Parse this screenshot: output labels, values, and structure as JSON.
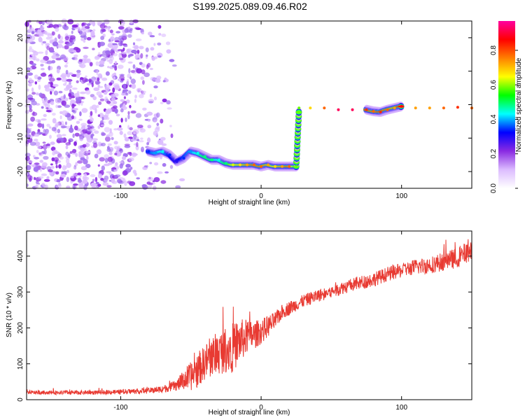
{
  "title": "S199.2025.089.09.46.R02",
  "chart_data": [
    {
      "type": "heatmap",
      "xlabel": "Height of straight line (km)",
      "ylabel": "Frequency (Hz)",
      "xlim": [
        -167,
        150
      ],
      "ylim": [
        -25,
        25
      ],
      "xticks": [
        -100,
        0,
        100
      ],
      "yticks": [
        -20,
        -10,
        0,
        10,
        20
      ],
      "colorbar": {
        "label": "Normalized spectral amplitude",
        "range": [
          0.0,
          0.97
        ],
        "ticks": [
          0.0,
          0.2,
          0.4,
          0.6,
          0.8
        ],
        "colors": [
          "#ffffff",
          "#dcbcff",
          "#8a2be2",
          "#0000ff",
          "#00ffff",
          "#00ff00",
          "#ffff00",
          "#ff8000",
          "#ff0000",
          "#ff00a0"
        ]
      },
      "noise_region": {
        "x": [
          -167,
          -55
        ],
        "y": [
          -25,
          25
        ],
        "amplitude": 0.15
      },
      "ridge": [
        {
          "x": -80,
          "y": -14,
          "amp": 0.35
        },
        {
          "x": -75,
          "y": -14.5,
          "amp": 0.4
        },
        {
          "x": -70,
          "y": -14,
          "amp": 0.45
        },
        {
          "x": -65,
          "y": -15,
          "amp": 0.35
        },
        {
          "x": -60,
          "y": -17,
          "amp": 0.3
        },
        {
          "x": -55,
          "y": -16,
          "amp": 0.35
        },
        {
          "x": -50,
          "y": -14,
          "amp": 0.4
        },
        {
          "x": -45,
          "y": -14.5,
          "amp": 0.45
        },
        {
          "x": -40,
          "y": -15.5,
          "amp": 0.5
        },
        {
          "x": -35,
          "y": -16.5,
          "amp": 0.5
        },
        {
          "x": -30,
          "y": -16.5,
          "amp": 0.45
        },
        {
          "x": -25,
          "y": -17.5,
          "amp": 0.5
        },
        {
          "x": -20,
          "y": -18,
          "amp": 0.65
        },
        {
          "x": -15,
          "y": -18,
          "amp": 0.7
        },
        {
          "x": -10,
          "y": -18,
          "amp": 0.75
        },
        {
          "x": -5,
          "y": -18,
          "amp": 0.8
        },
        {
          "x": 0,
          "y": -18.5,
          "amp": 0.8
        },
        {
          "x": 5,
          "y": -18,
          "amp": 0.75
        },
        {
          "x": 10,
          "y": -18.5,
          "amp": 0.7
        },
        {
          "x": 15,
          "y": -18.5,
          "amp": 0.75
        },
        {
          "x": 20,
          "y": -18.5,
          "amp": 0.8
        },
        {
          "x": 25,
          "y": -18.5,
          "amp": 0.6
        },
        {
          "x": 27,
          "y": -1,
          "amp": 0.6
        },
        {
          "x": 35,
          "y": -1,
          "amp": 0.7
        },
        {
          "x": 45,
          "y": -1,
          "amp": 0.8
        },
        {
          "x": 55,
          "y": -1.5,
          "amp": 0.95
        },
        {
          "x": 65,
          "y": -1.5,
          "amp": 0.95
        },
        {
          "x": 75,
          "y": -1.5,
          "amp": 0.85
        },
        {
          "x": 80,
          "y": -2,
          "amp": 0.8
        },
        {
          "x": 85,
          "y": -2.2,
          "amp": 0.85
        },
        {
          "x": 90,
          "y": -1.5,
          "amp": 0.8
        },
        {
          "x": 95,
          "y": -1,
          "amp": 0.75
        },
        {
          "x": 100,
          "y": -0.5,
          "amp": 0.9
        },
        {
          "x": 110,
          "y": -1,
          "amp": 0.75
        },
        {
          "x": 120,
          "y": -1,
          "amp": 0.75
        },
        {
          "x": 130,
          "y": -1,
          "amp": 0.8
        },
        {
          "x": 140,
          "y": -0.8,
          "amp": 0.85
        },
        {
          "x": 150,
          "y": -1,
          "amp": 0.8
        }
      ]
    },
    {
      "type": "line",
      "xlabel": "Height of straight line (km)",
      "ylabel": "SNR (10 * v/v)",
      "xlim": [
        -167,
        150
      ],
      "ylim": [
        0,
        470
      ],
      "xticks": [
        -100,
        0,
        100
      ],
      "yticks": [
        0,
        100,
        200,
        300,
        400
      ],
      "color": "#e83a32",
      "x": [
        -167,
        -140,
        -120,
        -100,
        -80,
        -70,
        -60,
        -55,
        -50,
        -45,
        -40,
        -35,
        -30,
        -25,
        -20,
        -15,
        -10,
        -5,
        0,
        5,
        10,
        15,
        20,
        25,
        30,
        40,
        50,
        60,
        70,
        80,
        90,
        100,
        110,
        120,
        130,
        140,
        150
      ],
      "y": [
        20,
        20,
        20,
        22,
        25,
        30,
        40,
        55,
        65,
        80,
        105,
        120,
        130,
        140,
        145,
        165,
        175,
        180,
        190,
        205,
        220,
        245,
        255,
        265,
        275,
        290,
        300,
        315,
        325,
        335,
        350,
        360,
        370,
        375,
        385,
        395,
        420
      ],
      "noise_amplitude": [
        5,
        6,
        6,
        7,
        8,
        10,
        15,
        30,
        40,
        45,
        50,
        55,
        60,
        65,
        70,
        60,
        50,
        40,
        35,
        30,
        25,
        20,
        20,
        18,
        18,
        18,
        18,
        18,
        20,
        20,
        20,
        20,
        22,
        24,
        26,
        28,
        30
      ]
    }
  ]
}
